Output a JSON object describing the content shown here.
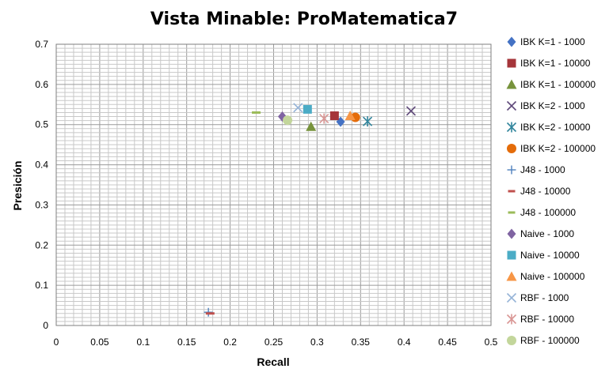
{
  "chart_data": {
    "type": "scatter",
    "title": "Vista Minable: ProMatematica7",
    "xlabel": "Recall",
    "ylabel": "Presición",
    "xlim": [
      0,
      0.5
    ],
    "ylim": [
      0,
      0.7
    ],
    "xticks": [
      "0",
      "0.05",
      "0.1",
      "0.15",
      "0.2",
      "0.25",
      "0.3",
      "0.35",
      "0.4",
      "0.45",
      "0.5"
    ],
    "yticks": [
      "0",
      "0.1",
      "0.2",
      "0.3",
      "0.4",
      "0.5",
      "0.6",
      "0.7"
    ],
    "grid": true,
    "legend_position": "right",
    "series": [
      {
        "name": "IBK K=1 - 1000",
        "marker": "diamond",
        "color": "#4472C4",
        "x": 0.327,
        "y": 0.507
      },
      {
        "name": "IBK K=1 - 10000",
        "marker": "square",
        "color": "#A5353A",
        "x": 0.32,
        "y": 0.522
      },
      {
        "name": "IBK K=1 - 100000",
        "marker": "triangle",
        "color": "#77933C",
        "x": 0.293,
        "y": 0.495
      },
      {
        "name": "IBK K=2 - 1000",
        "marker": "x",
        "color": "#5F497A",
        "x": 0.408,
        "y": 0.534
      },
      {
        "name": "IBK K=2 - 10000",
        "marker": "star",
        "color": "#31859C",
        "x": 0.358,
        "y": 0.508
      },
      {
        "name": "IBK K=2 - 100000",
        "marker": "circle",
        "color": "#E46C0A",
        "x": 0.344,
        "y": 0.518
      },
      {
        "name": "J48 - 1000",
        "marker": "plus",
        "color": "#4F81BD",
        "x": 0.175,
        "y": 0.033
      },
      {
        "name": "J48 - 10000",
        "marker": "dash",
        "color": "#C0504D",
        "x": 0.177,
        "y": 0.03
      },
      {
        "name": "J48 - 100000",
        "marker": "dash",
        "color": "#9BBB59",
        "x": 0.23,
        "y": 0.53
      },
      {
        "name": "Naive - 1000",
        "marker": "diamond",
        "color": "#8064A2",
        "x": 0.26,
        "y": 0.52
      },
      {
        "name": "Naive - 10000",
        "marker": "square",
        "color": "#4BACC6",
        "x": 0.289,
        "y": 0.538
      },
      {
        "name": "Naive - 100000",
        "marker": "triangle",
        "color": "#F79646",
        "x": 0.338,
        "y": 0.522
      },
      {
        "name": "RBF - 1000",
        "marker": "x",
        "color": "#95B3D7",
        "x": 0.278,
        "y": 0.542
      },
      {
        "name": "RBF - 10000",
        "marker": "star",
        "color": "#D99694",
        "x": 0.308,
        "y": 0.515
      },
      {
        "name": "RBF - 100000",
        "marker": "circle",
        "color": "#C3D69B",
        "x": 0.266,
        "y": 0.511
      }
    ]
  }
}
